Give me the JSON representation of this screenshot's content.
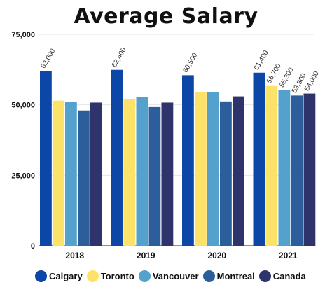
{
  "chart_data": {
    "type": "bar",
    "title": "Average Salary",
    "categories": [
      "2018",
      "2019",
      "2020",
      "2021"
    ],
    "series": [
      {
        "name": "Calgary",
        "color": "#0c47a8",
        "values": [
          62000,
          62400,
          60500,
          61400
        ]
      },
      {
        "name": "Toronto",
        "color": "#fde26a",
        "values": [
          51500,
          52000,
          54500,
          56700
        ]
      },
      {
        "name": "Vancouver",
        "color": "#54a1ce",
        "values": [
          51000,
          52800,
          54500,
          55300
        ]
      },
      {
        "name": "Montreal",
        "color": "#2d5e9c",
        "values": [
          48000,
          49200,
          51200,
          53300
        ]
      },
      {
        "name": "Canada",
        "color": "#2e336b",
        "values": [
          50800,
          50800,
          53000,
          54000
        ]
      }
    ],
    "data_labels": [
      {
        "category": "2018",
        "series": "Calgary",
        "text": "62,000"
      },
      {
        "category": "2019",
        "series": "Calgary",
        "text": "62,400"
      },
      {
        "category": "2020",
        "series": "Calgary",
        "text": "60,500"
      },
      {
        "category": "2021",
        "series": "Calgary",
        "text": "61,400"
      },
      {
        "category": "2021",
        "series": "Toronto",
        "text": "56,700"
      },
      {
        "category": "2021",
        "series": "Vancouver",
        "text": "55,300"
      },
      {
        "category": "2021",
        "series": "Montreal",
        "text": "53,300"
      },
      {
        "category": "2021",
        "series": "Canada",
        "text": "54,000"
      }
    ],
    "ylim": [
      0,
      75000
    ],
    "yticks": [
      0,
      25000,
      50000,
      75000
    ],
    "ytick_labels": [
      "0",
      "25,000",
      "50,000",
      "75,000"
    ],
    "grid": true,
    "legend_position": "bottom"
  }
}
